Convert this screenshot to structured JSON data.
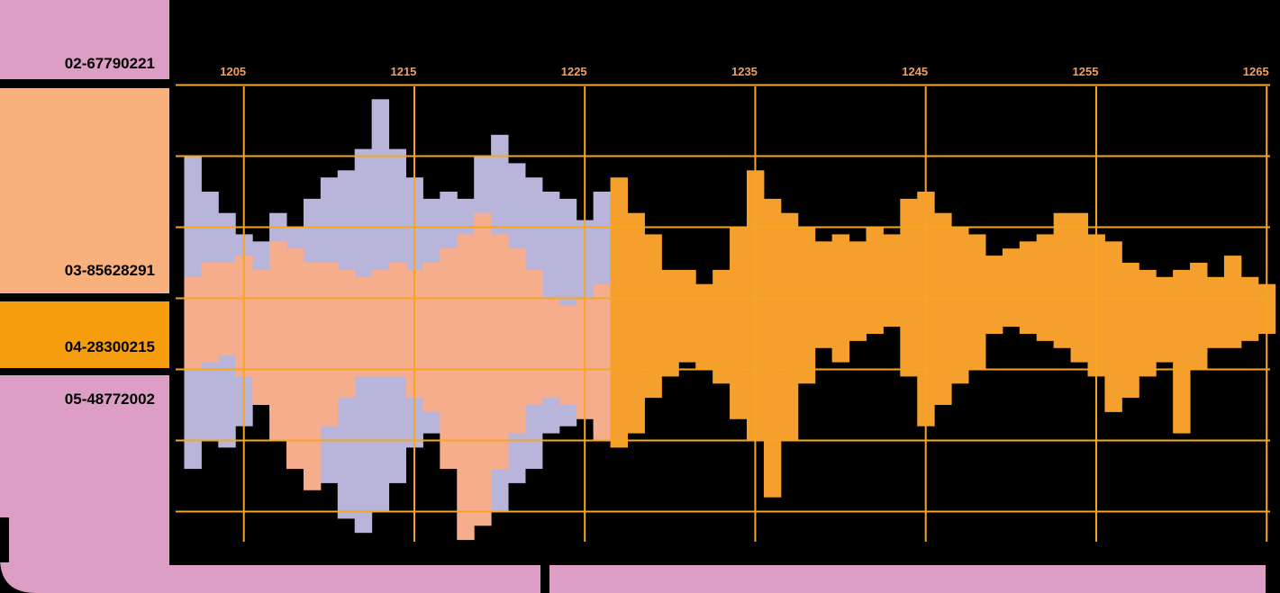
{
  "sidebar": {
    "labels": [
      "02-67790221",
      "03-85628291",
      "04-28300215",
      "05-48772002"
    ]
  },
  "chart_data": {
    "type": "bar",
    "xlim": [
      1201,
      1265.2
    ],
    "xticks": [
      1205,
      1215,
      1225,
      1235,
      1245,
      1255,
      1265
    ],
    "ylim": [
      -3.5,
      3.5
    ],
    "yticks": [
      -3,
      -2,
      -1,
      0,
      1,
      2,
      3
    ],
    "grid": true,
    "grid_color": "#f5a623",
    "series": [
      {
        "color": "#b9b4da",
        "x": [
          1202,
          1203,
          1204,
          1205,
          1206,
          1207,
          1208,
          1209,
          1210,
          1211,
          1212,
          1213,
          1214,
          1215,
          1216,
          1217,
          1218,
          1219,
          1220,
          1221,
          1222,
          1223,
          1224,
          1225,
          1226
        ],
        "top": [
          2.0,
          1.5,
          1.2,
          0.9,
          0.8,
          1.2,
          1.0,
          1.4,
          1.7,
          1.8,
          2.1,
          2.8,
          2.1,
          1.7,
          1.4,
          1.5,
          1.4,
          2.0,
          2.3,
          1.9,
          1.7,
          1.5,
          1.4,
          1.1,
          1.5
        ],
        "bottom": [
          -2.4,
          -2.0,
          -2.1,
          -1.8,
          -1.5,
          -1.6,
          -1.8,
          -2.1,
          -2.6,
          -3.1,
          -3.3,
          -3.0,
          -2.6,
          -2.1,
          -1.9,
          -1.8,
          -2.1,
          -2.9,
          -3.0,
          -2.6,
          -2.4,
          -1.9,
          -1.8,
          -1.6,
          -1.9
        ]
      },
      {
        "color": "#f6ad8c",
        "x": [
          1202,
          1203,
          1204,
          1205,
          1206,
          1207,
          1208,
          1209,
          1210,
          1211,
          1212,
          1213,
          1214,
          1215,
          1216,
          1217,
          1218,
          1219,
          1220,
          1221,
          1222,
          1223,
          1224,
          1225,
          1226
        ],
        "top": [
          0.3,
          0.5,
          0.5,
          0.6,
          0.4,
          0.8,
          0.7,
          0.5,
          0.5,
          0.4,
          0.3,
          0.4,
          0.5,
          0.4,
          0.5,
          0.7,
          0.9,
          1.2,
          0.9,
          0.7,
          0.4,
          0.0,
          -0.1,
          0.0,
          0.2
        ],
        "bottom": [
          -1.0,
          -0.9,
          -0.8,
          -1.1,
          -1.5,
          -2.0,
          -2.4,
          -2.7,
          -1.8,
          -1.4,
          -1.1,
          -1.1,
          -1.1,
          -1.4,
          -1.6,
          -2.4,
          -3.4,
          -3.2,
          -2.4,
          -1.9,
          -1.5,
          -1.4,
          -1.5,
          -1.7,
          -2.0
        ]
      },
      {
        "color": "#f59f2c",
        "x": [
          1227,
          1228,
          1229,
          1230,
          1231,
          1232,
          1233,
          1234,
          1235,
          1236,
          1237,
          1238,
          1239,
          1240,
          1241,
          1242,
          1243,
          1244,
          1245,
          1246,
          1247,
          1248,
          1249,
          1250,
          1251,
          1252,
          1253,
          1254,
          1255,
          1256,
          1257,
          1258,
          1259,
          1260,
          1261,
          1262,
          1263,
          1264,
          1265
        ],
        "top": [
          1.7,
          1.2,
          0.9,
          0.4,
          0.4,
          0.2,
          0.4,
          1.0,
          1.8,
          1.4,
          1.2,
          1.0,
          0.8,
          0.9,
          0.8,
          1.0,
          0.9,
          1.4,
          1.5,
          1.2,
          1.0,
          0.9,
          0.6,
          0.7,
          0.8,
          0.9,
          1.2,
          1.2,
          0.9,
          0.8,
          0.5,
          0.4,
          0.3,
          0.4,
          0.5,
          0.3,
          0.6,
          0.3,
          0.2
        ],
        "bottom": [
          -2.1,
          -1.9,
          -1.4,
          -1.1,
          -0.9,
          -1.0,
          -1.2,
          -1.7,
          -2.0,
          -2.8,
          -2.0,
          -1.2,
          -0.7,
          -0.9,
          -0.6,
          -0.5,
          -0.4,
          -1.1,
          -1.8,
          -1.5,
          -1.2,
          -1.0,
          -0.5,
          -0.4,
          -0.5,
          -0.6,
          -0.7,
          -0.9,
          -1.1,
          -1.6,
          -1.4,
          -1.1,
          -0.9,
          -1.9,
          -1.0,
          -0.7,
          -0.7,
          -0.6,
          -0.5
        ]
      }
    ]
  }
}
